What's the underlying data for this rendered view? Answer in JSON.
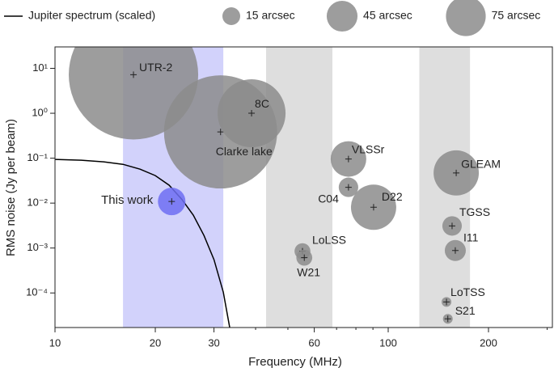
{
  "chart_data": {
    "type": "scatter",
    "xlabel": "Frequency (MHz)",
    "ylabel": "RMS noise (Jy per beam)",
    "log_x": true,
    "log_y": true,
    "xlim": [
      10,
      311
    ],
    "ylim": [
      1.7e-05,
      30
    ],
    "xticks": [
      10,
      20,
      30,
      60,
      100,
      200
    ],
    "x_minor_ticks": [
      40,
      50,
      70,
      80,
      90,
      300
    ],
    "yticks": [
      {
        "value": 10,
        "label": "10¹"
      },
      {
        "value": 1,
        "label": "10⁰"
      },
      {
        "value": 0.1,
        "label": "10⁻¹"
      },
      {
        "value": 0.01,
        "label": "10⁻²"
      },
      {
        "value": 0.001,
        "label": "10⁻³"
      },
      {
        "value": 0.0001,
        "label": "10⁻⁴"
      }
    ],
    "bands": [
      {
        "range": [
          16,
          32
        ],
        "color": "#d2d2fb"
      },
      {
        "range": [
          43,
          68
        ],
        "color": "#dedede"
      },
      {
        "range": [
          124,
          176
        ],
        "color": "#dedede"
      }
    ],
    "line": {
      "name": "Jupiter spectrum (scaled)",
      "color": "#000000",
      "x": [
        10,
        12,
        14,
        16,
        18,
        20,
        22,
        24,
        26,
        28,
        30,
        32,
        33.5
      ],
      "y": [
        0.094,
        0.09,
        0.083,
        0.073,
        0.057,
        0.041,
        0.025,
        0.0123,
        0.0054,
        0.0019,
        0.00055,
        0.000104,
        1.6e-05
      ]
    },
    "points": {
      "labels": [
        "UTR-2",
        "Clarke lake",
        "8C",
        "This work",
        "VLSSr",
        "C04",
        "D22",
        "GLEAM",
        "TGSS",
        "I11",
        "LoLSS",
        "W21",
        "LoTSS",
        "S21"
      ],
      "x": [
        17.2,
        31.4,
        38.9,
        22.4,
        76,
        76,
        90.4,
        160,
        155.5,
        159,
        55.3,
        56,
        149.6,
        151
      ],
      "y": [
        7.2,
        0.385,
        1.0,
        0.0109,
        0.096,
        0.0225,
        0.0081,
        0.047,
        0.0031,
        0.00088,
        0.00085,
        0.00061,
        6.3e-05,
        2.65e-05
      ],
      "sizes": [
        794,
        607,
        219,
        36,
        60,
        18,
        97,
        97,
        18,
        21,
        12,
        12,
        4.5,
        4.5
      ],
      "colors": [
        "#8c8c8c",
        "#8c8c8c",
        "#8c8c8c",
        "#6e6ef2",
        "#8c8c8c",
        "#8c8c8c",
        "#8c8c8c",
        "#8c8c8c",
        "#8c8c8c",
        "#8c8c8c",
        "#8c8c8c",
        "#8c8c8c",
        "#8c8c8c",
        "#8c8c8c"
      ],
      "label_colors": [
        "#222222",
        "#222222",
        "#222222",
        "#3a3ae6",
        "#222222",
        "#222222",
        "#222222",
        "#222222",
        "#222222",
        "#222222",
        "#222222",
        "#222222",
        "#222222",
        "#222222"
      ]
    },
    "size_legend": [
      {
        "value": 15,
        "label": "15 arcsec"
      },
      {
        "value": 45,
        "label": "45 arcsec"
      },
      {
        "value": 75,
        "label": "75 arcsec"
      }
    ]
  }
}
